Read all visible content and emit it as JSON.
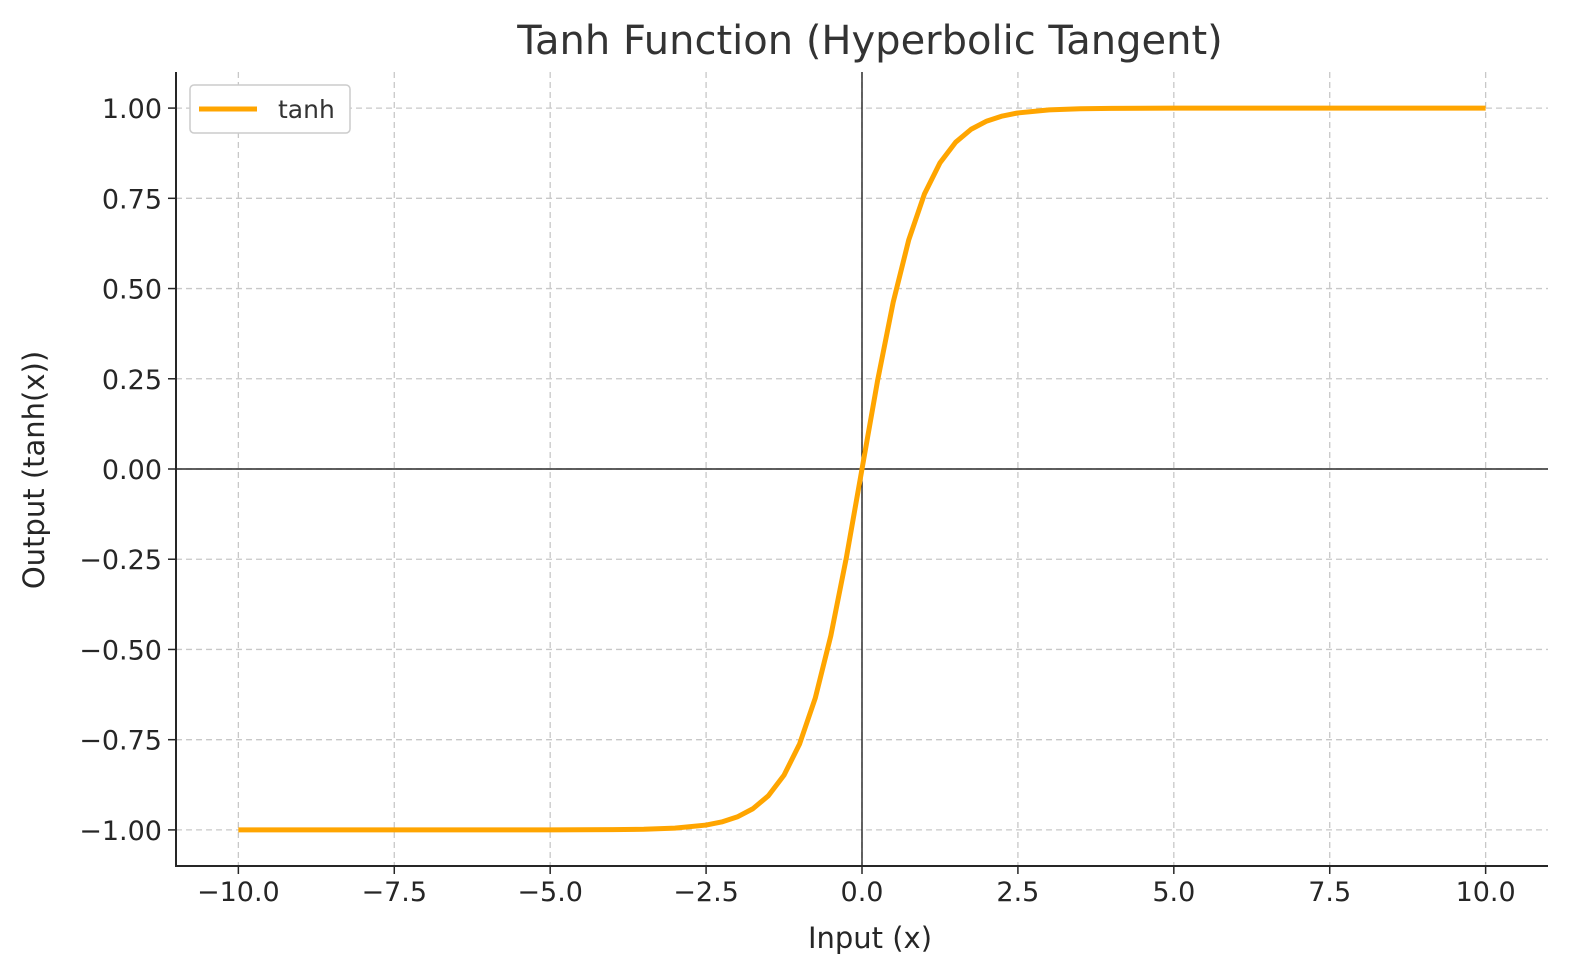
{
  "chart_data": {
    "type": "line",
    "title": "Tanh Function (Hyperbolic Tangent)",
    "xlabel": "Input (x)",
    "ylabel": "Output (tanh(x))",
    "xlim": [
      -11,
      11
    ],
    "ylim": [
      -1.1,
      1.1
    ],
    "x_ticks": [
      -10.0,
      -7.5,
      -5.0,
      -2.5,
      0.0,
      2.5,
      5.0,
      7.5,
      10.0
    ],
    "x_tick_labels": [
      "−10.0",
      "−7.5",
      "−5.0",
      "−2.5",
      "0.0",
      "2.5",
      "5.0",
      "7.5",
      "10.0"
    ],
    "y_ticks": [
      -1.0,
      -0.75,
      -0.5,
      -0.25,
      0.0,
      0.25,
      0.5,
      0.75,
      1.0
    ],
    "y_tick_labels": [
      "−1.00",
      "−0.75",
      "−0.50",
      "−0.25",
      "0.00",
      "0.25",
      "0.50",
      "0.75",
      "1.00"
    ],
    "grid": true,
    "reference_lines": {
      "x": 0,
      "y": 0,
      "color": "#000000"
    },
    "legend_position": "upper-left",
    "series": [
      {
        "name": "tanh",
        "color": "#FFA500",
        "x": [
          -10,
          -9,
          -8,
          -7,
          -6,
          -5,
          -4,
          -3.5,
          -3,
          -2.5,
          -2.25,
          -2,
          -1.75,
          -1.5,
          -1.25,
          -1,
          -0.75,
          -0.5,
          -0.25,
          0,
          0.25,
          0.5,
          0.75,
          1,
          1.25,
          1.5,
          1.75,
          2,
          2.25,
          2.5,
          3,
          3.5,
          4,
          5,
          6,
          7,
          8,
          9,
          10
        ],
        "y": [
          -1.0,
          -1.0,
          -1.0,
          -1.0,
          -1.0,
          -0.9999,
          -0.9993,
          -0.9982,
          -0.9951,
          -0.9866,
          -0.978,
          -0.964,
          -0.9414,
          -0.9051,
          -0.8483,
          -0.7616,
          -0.6351,
          -0.4621,
          -0.2449,
          0.0,
          0.2449,
          0.4621,
          0.6351,
          0.7616,
          0.8483,
          0.9051,
          0.9414,
          0.964,
          0.978,
          0.9866,
          0.9951,
          0.9982,
          0.9993,
          0.9999,
          1.0,
          1.0,
          1.0,
          1.0,
          1.0
        ]
      }
    ]
  }
}
